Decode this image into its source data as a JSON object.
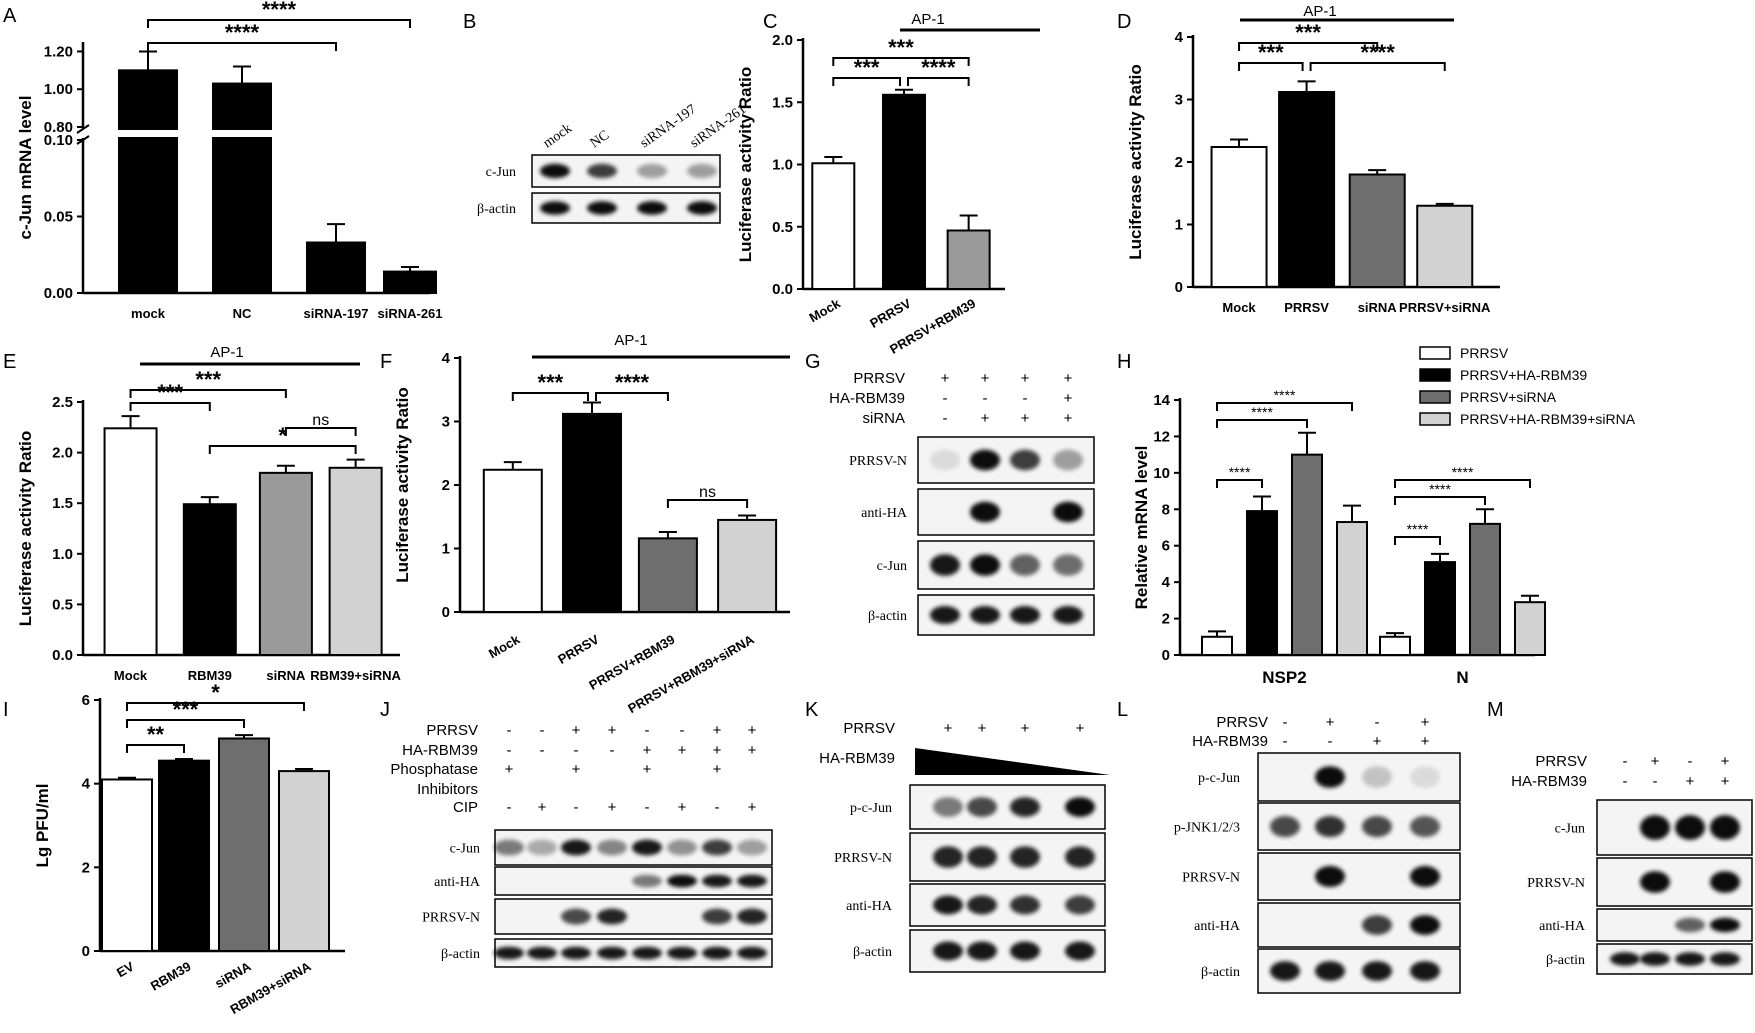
{
  "panels": [
    "A",
    "B",
    "C",
    "D",
    "E",
    "F",
    "G",
    "H",
    "I",
    "J",
    "K",
    "L",
    "M"
  ],
  "colors": {
    "white": "#ffffff",
    "black": "#000000",
    "dark_gray": "#6e6e6e",
    "mid_gray": "#9a9a9a",
    "light_gray": "#d2d2d2"
  },
  "chart_data": [
    {
      "panel": "A",
      "type": "bar",
      "categories": [
        "mock",
        "NC",
        "siRNA-197",
        "siRNA-261"
      ],
      "values": [
        1.1,
        1.03,
        0.033,
        0.014
      ],
      "errors": [
        0.1,
        0.09,
        0.012,
        0.003
      ],
      "fills": [
        "black",
        "black",
        "black",
        "black"
      ],
      "ylabel": "c-Jun mRNA level",
      "broken_axis": true,
      "yticks_lower": [
        "0.00",
        "0.05",
        "0.10"
      ],
      "yticks_upper": [
        "0.80",
        "1.00",
        "1.20"
      ],
      "ylim_lower": [
        0,
        0.1
      ],
      "ylim_upper": [
        0.8,
        1.25
      ],
      "annotations": [
        {
          "from": 0,
          "to": 3,
          "text": "****"
        },
        {
          "from": 0,
          "to": 2,
          "text": "****"
        }
      ]
    },
    {
      "panel": "C",
      "type": "bar",
      "title": "AP-1",
      "categories": [
        "Mock",
        "PRRSV",
        "PRRSV+RBM39"
      ],
      "values": [
        1.01,
        1.56,
        0.47
      ],
      "errors": [
        0.05,
        0.04,
        0.12
      ],
      "fills": [
        "white",
        "black",
        "mid_gray"
      ],
      "ylabel": "Luciferase activity Ratio",
      "ylim": [
        0,
        2.0
      ],
      "yticks": [
        "0.0",
        "0.5",
        "1.0",
        "1.5",
        "2.0"
      ],
      "annotations": [
        {
          "from": 0,
          "to": 2,
          "text": "***"
        },
        {
          "from": 0,
          "to": 1,
          "text": "***"
        },
        {
          "from": 1,
          "to": 2,
          "text": "****"
        }
      ]
    },
    {
      "panel": "D",
      "type": "bar",
      "title": "AP-1",
      "categories": [
        "Mock",
        "PRRSV",
        "siRNA",
        "PRRSV+siRNA"
      ],
      "values": [
        2.24,
        3.12,
        1.8,
        1.3
      ],
      "errors": [
        0.12,
        0.17,
        0.07,
        0.03
      ],
      "fills": [
        "white",
        "black",
        "dark_gray",
        "light_gray"
      ],
      "ylabel": "Luciferase activity Ratio",
      "ylim": [
        0,
        4
      ],
      "yticks": [
        "0",
        "1",
        "2",
        "3",
        "4"
      ],
      "annotations": [
        {
          "from": 0,
          "to": 2,
          "text": "***"
        },
        {
          "from": 0,
          "to": 1,
          "text": "***"
        },
        {
          "from": 1,
          "to": 3,
          "text": "****"
        }
      ]
    },
    {
      "panel": "E",
      "type": "bar",
      "title": "AP-1",
      "categories": [
        "Mock",
        "RBM39",
        "siRNA",
        "RBM39+siRNA"
      ],
      "values": [
        2.24,
        1.49,
        1.8,
        1.85
      ],
      "errors": [
        0.12,
        0.07,
        0.07,
        0.08
      ],
      "fills": [
        "white",
        "black",
        "mid_gray",
        "light_gray"
      ],
      "ylabel": "Luciferase activity Ratio",
      "ylim": [
        0,
        2.5
      ],
      "yticks": [
        "0.0",
        "0.5",
        "1.0",
        "1.5",
        "2.0",
        "2.5"
      ],
      "annotations": [
        {
          "from": 0,
          "to": 2,
          "text": "***"
        },
        {
          "from": 0,
          "to": 1,
          "text": "***"
        },
        {
          "from": 2,
          "to": 3,
          "text": "ns"
        },
        {
          "from": 1,
          "to": 3,
          "text": "*"
        }
      ]
    },
    {
      "panel": "F",
      "type": "bar",
      "title": "AP-1",
      "categories": [
        "Mock",
        "PRRSV",
        "PRRSV+RBM39",
        "PRRSV+RBM39+siRNA"
      ],
      "values": [
        2.24,
        3.12,
        1.16,
        1.45
      ],
      "errors": [
        0.12,
        0.18,
        0.1,
        0.07
      ],
      "fills": [
        "white",
        "black",
        "dark_gray",
        "light_gray"
      ],
      "ylabel": "Luciferase activity Ratio",
      "ylim": [
        0,
        4
      ],
      "yticks": [
        "0",
        "1",
        "2",
        "3",
        "4"
      ],
      "annotations": [
        {
          "from": 0,
          "to": 1,
          "text": "***"
        },
        {
          "from": 1,
          "to": 2,
          "text": "****"
        },
        {
          "from": 2,
          "to": 3,
          "text": "ns"
        }
      ]
    },
    {
      "panel": "H",
      "type": "bar",
      "categories": [
        "NSP2",
        "N"
      ],
      "series": [
        {
          "name": "PRRSV",
          "values": [
            1.0,
            1.0
          ],
          "errors": [
            0.3,
            0.2
          ]
        },
        {
          "name": "PRRSV+HA-RBM39",
          "values": [
            7.9,
            5.1
          ],
          "errors": [
            0.8,
            0.45
          ]
        },
        {
          "name": "PRRSV+siRNA",
          "values": [
            11.0,
            7.2
          ],
          "errors": [
            1.2,
            0.8
          ]
        },
        {
          "name": "PRRSV+HA-RBM39+siRNA",
          "values": [
            7.3,
            2.9
          ],
          "errors": [
            0.9,
            0.35
          ]
        }
      ],
      "fills": [
        "white",
        "black",
        "dark_gray",
        "light_gray"
      ],
      "ylabel": "Relative mRNA level",
      "ylim": [
        0,
        14
      ],
      "yticks": [
        "0",
        "2",
        "4",
        "6",
        "8",
        "10",
        "12",
        "14"
      ],
      "annotations": [
        {
          "group": 0,
          "from": 0,
          "to": 3,
          "text": "****"
        },
        {
          "group": 0,
          "from": 0,
          "to": 2,
          "text": "****"
        },
        {
          "group": 0,
          "from": 0,
          "to": 1,
          "text": "****"
        },
        {
          "group": 1,
          "from": 0,
          "to": 3,
          "text": "****"
        },
        {
          "group": 1,
          "from": 0,
          "to": 2,
          "text": "****"
        },
        {
          "group": 1,
          "from": 0,
          "to": 1,
          "text": "****"
        }
      ]
    },
    {
      "panel": "I",
      "type": "bar",
      "categories": [
        "EV",
        "RBM39",
        "siRNA",
        "RBM39+siRNA"
      ],
      "values": [
        4.1,
        4.55,
        5.08,
        4.3
      ],
      "errors": [
        0.04,
        0.04,
        0.08,
        0.05
      ],
      "fills": [
        "white",
        "black",
        "dark_gray",
        "light_gray"
      ],
      "ylabel": "Lg PFU/ml",
      "ylim": [
        0,
        6
      ],
      "yticks": [
        "0",
        "2",
        "4",
        "6"
      ],
      "annotations": [
        {
          "from": 0,
          "to": 3,
          "text": "*"
        },
        {
          "from": 0,
          "to": 2,
          "text": "***"
        },
        {
          "from": 0,
          "to": 1,
          "text": "**"
        }
      ]
    }
  ],
  "blots": {
    "B": {
      "lanes": [
        "mock",
        "NC",
        "siRNA-197",
        "siRNA-261"
      ],
      "rows": [
        "c-Jun",
        "β-actin"
      ]
    },
    "G": {
      "cond_labels": [
        "PRRSV",
        "HA-RBM39",
        "siRNA"
      ],
      "cond_values": [
        [
          "+",
          "+",
          "+",
          "+"
        ],
        [
          "-",
          "-",
          "-",
          "+"
        ],
        [
          "-",
          "+",
          "+",
          "+"
        ]
      ],
      "rows": [
        "PRRSV-N",
        "anti-HA",
        "c-Jun",
        "β-actin"
      ]
    },
    "J": {
      "cond_labels": [
        "PRRSV",
        "HA-RBM39",
        "Phosphatase",
        "Inhibitors",
        "CIP"
      ],
      "cond_values": [
        [
          "-",
          "-",
          "+",
          "+",
          "-",
          "-",
          "+",
          "+"
        ],
        [
          "-",
          "-",
          "-",
          "-",
          "+",
          "+",
          "+",
          "+"
        ],
        [
          "+",
          "",
          "+",
          "",
          "+",
          "",
          "+",
          ""
        ],
        [
          "",
          "",
          "",
          "",
          "",
          "",
          "",
          ""
        ],
        [
          "-",
          "+",
          "-",
          "+",
          "-",
          "+",
          "-",
          "+"
        ]
      ],
      "rows": [
        "c-Jun",
        "anti-HA",
        "PRRSV-N",
        "β-actin"
      ]
    },
    "K": {
      "cond_labels": [
        "PRRSV",
        "HA-RBM39"
      ],
      "cond_values": [
        [
          "+",
          "+",
          "+",
          "+"
        ]
      ],
      "rows": [
        "p-c-Jun",
        "PRRSV-N",
        "anti-HA",
        "β-actin"
      ]
    },
    "L": {
      "cond_labels": [
        "PRRSV",
        "HA-RBM39"
      ],
      "cond_values": [
        [
          "-",
          "+",
          "-",
          "+"
        ],
        [
          "-",
          "-",
          "+",
          "+"
        ]
      ],
      "rows": [
        "p-c-Jun",
        "p-JNK1/2/3",
        "PRRSV-N",
        "anti-HA",
        "β-actin"
      ]
    },
    "M": {
      "cond_labels": [
        "PRRSV",
        "HA-RBM39"
      ],
      "cond_values": [
        [
          "-",
          "+",
          "-",
          "+"
        ],
        [
          "-",
          "-",
          "+",
          "+"
        ]
      ],
      "rows": [
        "c-Jun",
        "PRRSV-N",
        "anti-HA",
        "β-actin"
      ]
    }
  }
}
